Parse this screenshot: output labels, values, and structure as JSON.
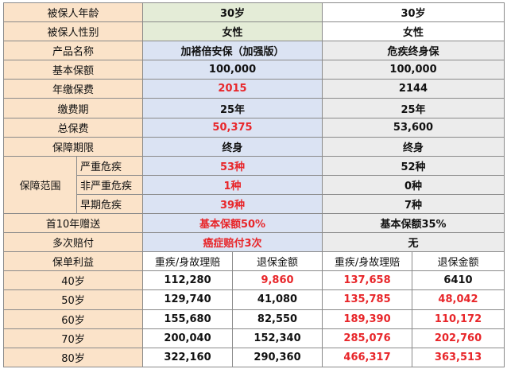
{
  "colors": {
    "label_bg": "#fbe3c9",
    "product1_bg": "#dbe3f3",
    "product2_bg": "#ececec",
    "highlight": "#e8262a"
  },
  "rows": {
    "age": {
      "label": "被保人年龄",
      "p1": "30岁",
      "p2": "30岁"
    },
    "gender": {
      "label": "被保人性别",
      "p1": "女性",
      "p2": "女性"
    },
    "product": {
      "label": "产品名称",
      "p1": "加褡倍安保（加强版）",
      "p2": "危疾终身保"
    },
    "sum": {
      "label": "基本保额",
      "p1": "100,000",
      "p2": "100,000"
    },
    "premium": {
      "label": "年缴保费",
      "p1": "2015",
      "p2": "2144"
    },
    "period": {
      "label": "缴费期",
      "p1": "25年",
      "p2": "25年"
    },
    "total": {
      "label": "总保费",
      "p1": "50,375",
      "p2": "53,600"
    },
    "term": {
      "label": "保障期限",
      "p1": "终身",
      "p2": "终身"
    },
    "coverage": {
      "label": "保障范围",
      "severe": {
        "label": "严重危疾",
        "p1": "53种",
        "p2": "52种"
      },
      "nonsevere": {
        "label": "非严重危疾",
        "p1": "1种",
        "p2": "0种"
      },
      "early": {
        "label": "早期危疾",
        "p1": "39种",
        "p2": "7种"
      }
    },
    "bonus": {
      "label": "首10年赠送",
      "p1": "基本保额50%",
      "p2": "基本保额35%"
    },
    "multi": {
      "label": "多次赔付",
      "p1": "癌症赔付3次",
      "p2": "无"
    },
    "benefits": {
      "label": "保单利益",
      "col_claim": "重疾/身故理赔",
      "col_surrender": "退保金额",
      "rows": [
        {
          "age": "40岁",
          "p1_claim": "112,280",
          "p1_surr": "9,860",
          "p2_claim": "137,658",
          "p2_surr": "6410"
        },
        {
          "age": "50岁",
          "p1_claim": "129,740",
          "p1_surr": "41,080",
          "p2_claim": "135,785",
          "p2_surr": "48,042"
        },
        {
          "age": "60岁",
          "p1_claim": "155,680",
          "p1_surr": "82,550",
          "p2_claim": "189,390",
          "p2_surr": "110,172"
        },
        {
          "age": "70岁",
          "p1_claim": "200,040",
          "p1_surr": "152,340",
          "p2_claim": "285,076",
          "p2_surr": "202,760"
        },
        {
          "age": "80岁",
          "p1_claim": "322,160",
          "p1_surr": "290,360",
          "p2_claim": "466,317",
          "p2_surr": "363,513"
        }
      ]
    }
  }
}
